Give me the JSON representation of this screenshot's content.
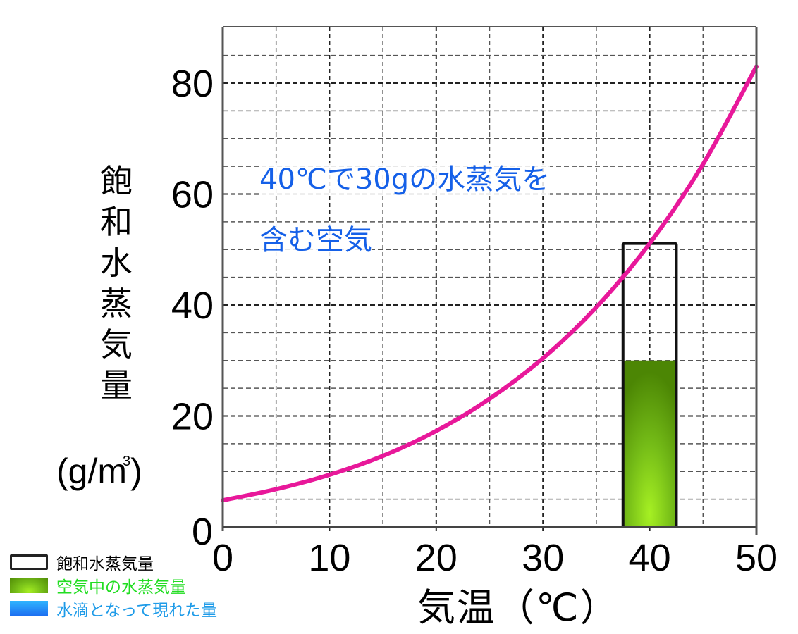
{
  "chart_data": {
    "type": "line",
    "title": "",
    "xlabel": "気温（℃）",
    "ylabel": "飽和水蒸気量（g/m³）",
    "xlim": [
      0,
      50
    ],
    "ylim": [
      0,
      90
    ],
    "x_ticks": [
      "0",
      "10",
      "20",
      "30",
      "40",
      "50"
    ],
    "y_ticks": [
      "0",
      "20",
      "40",
      "60",
      "80"
    ],
    "grid": true,
    "series": [
      {
        "name": "飽和水蒸気量",
        "color": "#e8189a",
        "x": [
          0,
          5,
          10,
          15,
          20,
          25,
          30,
          35,
          40,
          45,
          50
        ],
        "y": [
          4.8,
          6.8,
          9.4,
          12.8,
          17.3,
          23.1,
          30.4,
          39.6,
          51.1,
          65.4,
          83.0
        ]
      }
    ],
    "bar": {
      "x_center": 40,
      "x_from": 37.5,
      "x_to": 42.5,
      "saturation_value": 51.1,
      "vapor_value": 30
    },
    "annotation": [
      "40℃で30gの水蒸気を",
      "含む空気"
    ],
    "legend": [
      {
        "label": "飽和水蒸気量",
        "swatch": "outline",
        "color": "#000000"
      },
      {
        "label": "空気中の水蒸気量",
        "swatch": "green-fill",
        "color": "#22dd22"
      },
      {
        "label": "水滴となって現れた量",
        "swatch": "blue-fill",
        "color": "#1e9be8"
      }
    ],
    "legend_position": "bottom-left"
  },
  "axis": {
    "y_label_chars": [
      "飽",
      "和",
      "水",
      "蒸",
      "気",
      "量"
    ],
    "y_unit": "(g/m",
    "y_unit_sup": "3",
    "y_unit_close": ")",
    "x_label": "気温（℃）"
  },
  "colors": {
    "curve": "#e8189a",
    "annotation": "#1560e8",
    "legend_saturation": "#000000",
    "legend_air": "#22dd22",
    "legend_drop": "#1e9be8"
  }
}
